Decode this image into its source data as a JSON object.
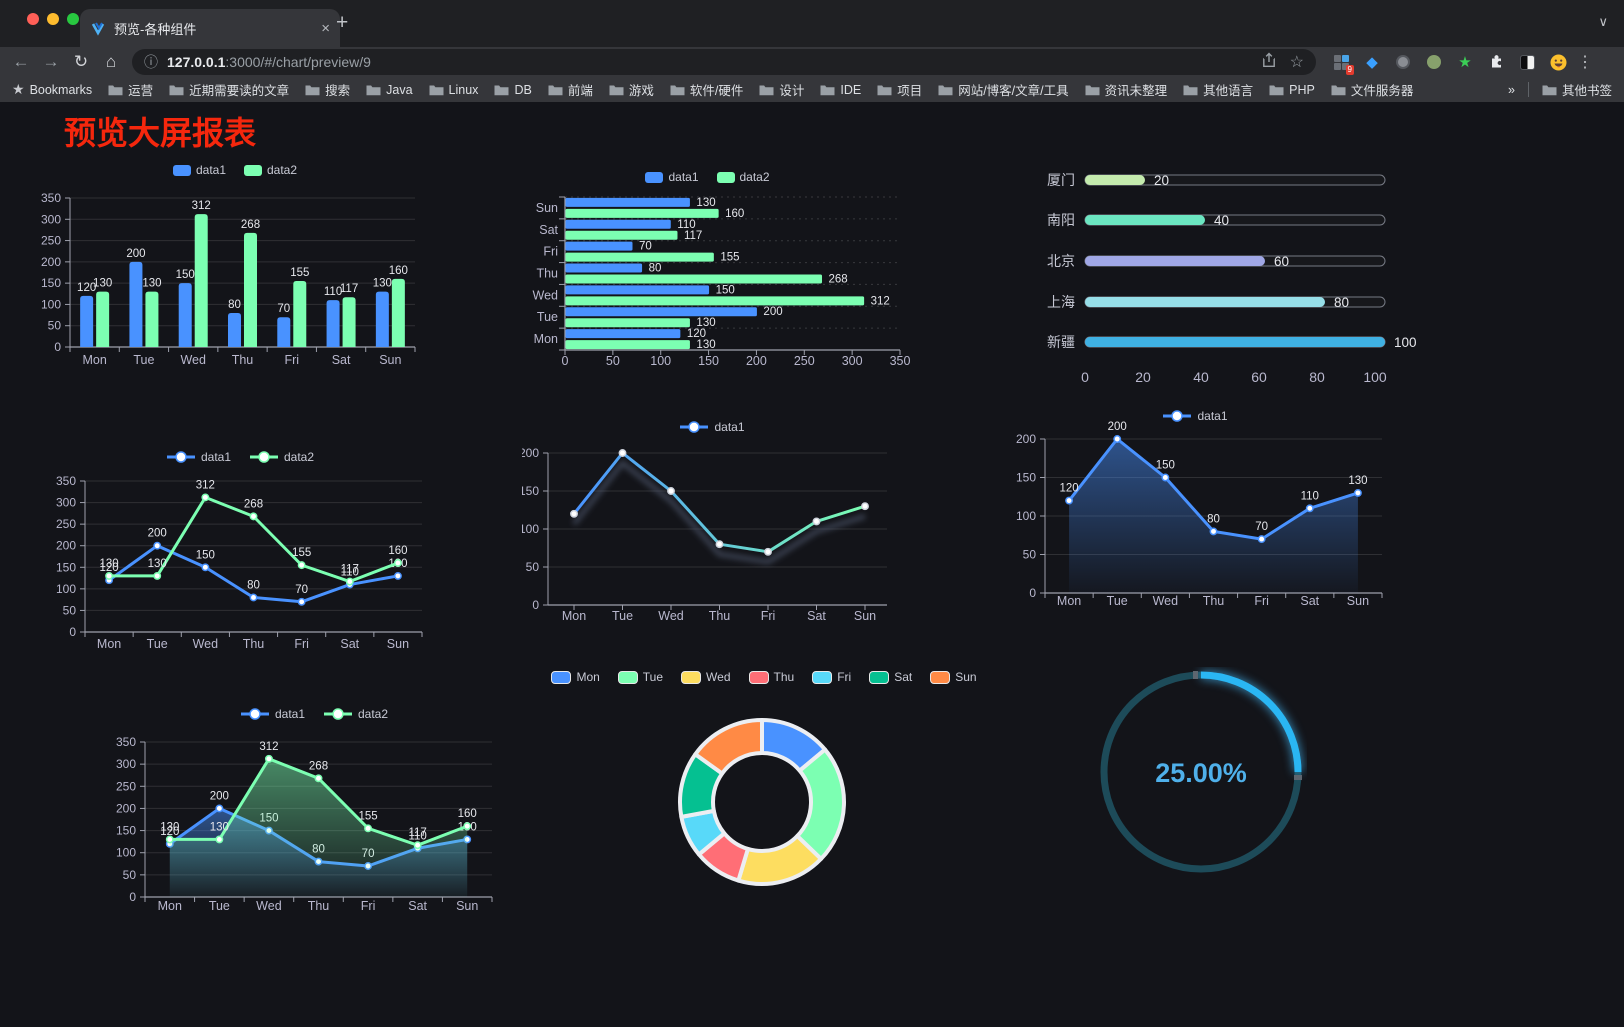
{
  "browser": {
    "tab_title": "预览-各种组件",
    "url_host": "127.0.0.1",
    "url_rest": ":3000/#/chart/preview/9",
    "bookmarks_label": "Bookmarks",
    "bookmarks": [
      "运营",
      "近期需要读的文章",
      "搜索",
      "Java",
      "Linux",
      "DB",
      "前端",
      "游戏",
      "软件/硬件",
      "设计",
      "IDE",
      "项目",
      "网站/博客/文章/工具",
      "资讯未整理",
      "其他语言",
      "PHP",
      "文件服务器"
    ],
    "overflow_chevron": "»",
    "other_bookmarks": "其他书签",
    "extensions_badge": "9",
    "extension_icons": [
      "grid-badge-icon",
      "gem-icon",
      "gray-circle-icon",
      "green-circle-icon",
      "green-star-icon",
      "puzzle-icon",
      "contrast-icon",
      "emoji-avatar-icon"
    ]
  },
  "page": {
    "title": "预览大屏报表",
    "title_color": "#f5270d",
    "background": "#131419"
  },
  "chart_data": [
    {
      "id": "bar-vertical",
      "type": "bar",
      "categories": [
        "Mon",
        "Tue",
        "Wed",
        "Thu",
        "Fri",
        "Sat",
        "Sun"
      ],
      "series": [
        {
          "name": "data1",
          "color": "#4992ff",
          "values": [
            120,
            200,
            150,
            80,
            70,
            110,
            130
          ]
        },
        {
          "name": "data2",
          "color": "#7cffb2",
          "values": [
            130,
            130,
            312,
            268,
            155,
            117,
            160
          ]
        }
      ],
      "ylim": [
        0,
        350
      ],
      "ystep": 50,
      "value_labels": true,
      "legend_position": "top",
      "grid": true
    },
    {
      "id": "bar-horizontal",
      "type": "bar-horizontal",
      "categories": [
        "Mon",
        "Tue",
        "Wed",
        "Thu",
        "Fri",
        "Sat",
        "Sun"
      ],
      "category_order_top_to_bottom": [
        "Sun",
        "Sat",
        "Fri",
        "Thu",
        "Wed",
        "Tue",
        "Mon"
      ],
      "series": [
        {
          "name": "data1",
          "color": "#4992ff",
          "values": [
            120,
            200,
            150,
            80,
            70,
            110,
            130
          ]
        },
        {
          "name": "data2",
          "color": "#7cffb2",
          "values": [
            130,
            130,
            312,
            268,
            155,
            117,
            160
          ]
        }
      ],
      "xlim": [
        0,
        350
      ],
      "xstep": 50,
      "value_labels": true,
      "legend_position": "top"
    },
    {
      "id": "progress",
      "type": "progress-bar",
      "rows": [
        {
          "label": "厦门",
          "value": 20,
          "color": "#c4ebad"
        },
        {
          "label": "南阳",
          "value": 40,
          "color": "#6be6c1"
        },
        {
          "label": "北京",
          "value": 60,
          "color": "#a0a7e6"
        },
        {
          "label": "上海",
          "value": 80,
          "color": "#96dee8"
        },
        {
          "label": "新疆",
          "value": 100,
          "color": "#3fb1e3"
        }
      ],
      "xlim": [
        0,
        100
      ],
      "xticks": [
        0,
        20,
        40,
        60,
        80,
        100
      ]
    },
    {
      "id": "line-two",
      "type": "line",
      "categories": [
        "Mon",
        "Tue",
        "Wed",
        "Thu",
        "Fri",
        "Sat",
        "Sun"
      ],
      "series": [
        {
          "name": "data1",
          "color": "#4992ff",
          "values": [
            120,
            200,
            150,
            80,
            70,
            110,
            130
          ]
        },
        {
          "name": "data2",
          "color": "#7cffb2",
          "values": [
            130,
            130,
            312,
            268,
            155,
            117,
            160
          ]
        }
      ],
      "ylim": [
        0,
        350
      ],
      "ystep": 50,
      "value_labels": true,
      "legend_position": "top"
    },
    {
      "id": "line-gradient",
      "type": "line",
      "categories": [
        "Mon",
        "Tue",
        "Wed",
        "Thu",
        "Fri",
        "Sat",
        "Sun"
      ],
      "series": [
        {
          "name": "data1",
          "gradient": [
            "#4992ff",
            "#7cffb2"
          ],
          "values": [
            120,
            200,
            150,
            80,
            70,
            110,
            130
          ]
        }
      ],
      "ylim": [
        0,
        200
      ],
      "ystep": 50,
      "value_labels": false,
      "shadow": true,
      "legend_position": "top"
    },
    {
      "id": "line-area",
      "type": "line",
      "categories": [
        "Mon",
        "Tue",
        "Wed",
        "Thu",
        "Fri",
        "Sat",
        "Sun"
      ],
      "series": [
        {
          "name": "data1",
          "color": "#4992ff",
          "area": true,
          "values": [
            120,
            200,
            150,
            80,
            70,
            110,
            130
          ]
        }
      ],
      "ylim": [
        0,
        200
      ],
      "ystep": 50,
      "value_labels": true,
      "legend_position": "top"
    },
    {
      "id": "line-area-two",
      "type": "line",
      "categories": [
        "Mon",
        "Tue",
        "Wed",
        "Thu",
        "Fri",
        "Sat",
        "Sun"
      ],
      "series": [
        {
          "name": "data1",
          "color": "#4992ff",
          "area": true,
          "values": [
            120,
            200,
            150,
            80,
            70,
            110,
            130
          ]
        },
        {
          "name": "data2",
          "color": "#7cffb2",
          "area": true,
          "values": [
            130,
            130,
            312,
            268,
            155,
            117,
            160
          ]
        }
      ],
      "ylim": [
        0,
        350
      ],
      "ystep": 50,
      "value_labels": true,
      "legend_position": "top"
    },
    {
      "id": "donut",
      "type": "pie",
      "slices": [
        {
          "label": "Mon",
          "value": 120,
          "color": "#4992ff"
        },
        {
          "label": "Tue",
          "value": 200,
          "color": "#7cffb2"
        },
        {
          "label": "Wed",
          "value": 150,
          "color": "#fddd60"
        },
        {
          "label": "Thu",
          "value": 80,
          "color": "#ff6e76"
        },
        {
          "label": "Fri",
          "value": 70,
          "color": "#58d9f9"
        },
        {
          "label": "Sat",
          "value": 110,
          "color": "#05c091"
        },
        {
          "label": "Sun",
          "value": 130,
          "color": "#ff8a45"
        }
      ],
      "donut": true,
      "legend_position": "top"
    },
    {
      "id": "gauge",
      "type": "gauge",
      "percent": 25,
      "label": "25.00%",
      "arc_color": "#2ab6f3",
      "track_color": "#1d4b59",
      "label_color": "#4fb0ea"
    }
  ]
}
